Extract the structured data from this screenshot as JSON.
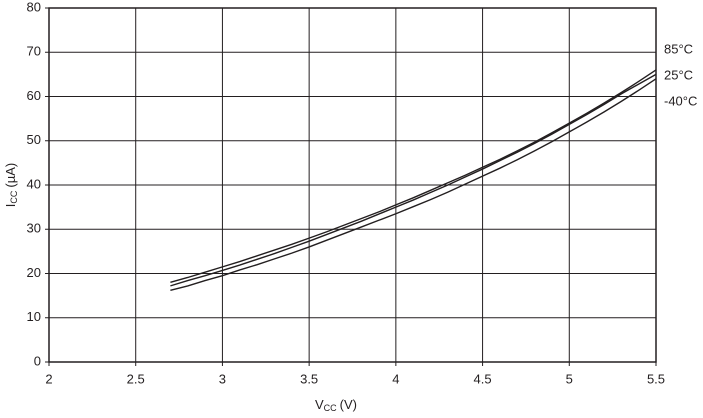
{
  "chart_data": {
    "type": "line",
    "x_label": {
      "main": "V",
      "sub": "CC",
      "unit": "(V)"
    },
    "y_label": {
      "main": "I",
      "sub": "CC",
      "unit": "(µA)"
    },
    "x": [
      2.7,
      2.8,
      2.9,
      3.0,
      3.1,
      3.2,
      3.3,
      3.4,
      3.5,
      3.6,
      3.7,
      3.8,
      3.9,
      4.0,
      4.1,
      4.2,
      4.3,
      4.4,
      4.5,
      4.6,
      4.7,
      4.8,
      4.9,
      5.0,
      5.1,
      5.2,
      5.3,
      5.4,
      5.5
    ],
    "series": [
      {
        "name": "85°C",
        "color": "#231f20",
        "values": [
          18.0,
          19.1,
          20.3,
          21.5,
          22.7,
          24.0,
          25.3,
          26.6,
          28.0,
          29.4,
          30.9,
          32.4,
          33.9,
          35.5,
          37.1,
          38.8,
          40.5,
          42.2,
          44.0,
          45.8,
          47.7,
          49.7,
          51.8,
          54.0,
          56.2,
          58.5,
          60.9,
          63.4,
          66.0
        ]
      },
      {
        "name": "25°C",
        "color": "#231f20",
        "values": [
          17.2,
          18.4,
          19.5,
          20.7,
          21.9,
          23.2,
          24.5,
          25.9,
          27.3,
          28.8,
          30.3,
          31.8,
          33.4,
          35.0,
          36.6,
          38.3,
          40.0,
          41.8,
          43.6,
          45.5,
          47.4,
          49.4,
          51.5,
          53.7,
          55.9,
          58.2,
          60.6,
          62.8,
          65.0
        ]
      },
      {
        "name": "-40°C",
        "color": "#231f20",
        "values": [
          16.2,
          17.2,
          18.4,
          19.5,
          20.8,
          22.0,
          23.3,
          24.6,
          26.0,
          27.5,
          29.0,
          30.5,
          32.0,
          33.5,
          35.1,
          36.7,
          38.4,
          40.2,
          42.0,
          43.8,
          45.7,
          47.7,
          49.8,
          52.0,
          54.2,
          56.5,
          58.9,
          61.4,
          64.0
        ]
      }
    ],
    "xlim": [
      2,
      5.5
    ],
    "xticks": [
      2,
      2.5,
      3,
      3.5,
      4,
      4.5,
      5,
      5.5
    ],
    "ylim": [
      0,
      80
    ],
    "yticks": [
      0,
      10,
      20,
      30,
      40,
      50,
      60,
      70,
      80
    ],
    "grid": true
  }
}
